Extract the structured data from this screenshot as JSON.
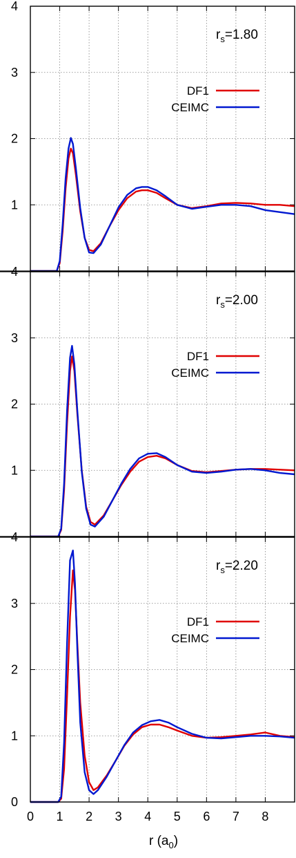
{
  "figure": {
    "xlabel": "r (a",
    "xlabel_sub": "0",
    "xlabel_close": ")"
  },
  "legend": {
    "df1": "DF1",
    "ceimc": "CEIMC"
  },
  "colors": {
    "df1": "#e00000",
    "ceimc": "#0018d0",
    "grid": "#808080",
    "frame": "#000000"
  },
  "x_ticks": [
    "0",
    "1",
    "2",
    "3",
    "4",
    "5",
    "6",
    "7",
    "8"
  ],
  "y_ticks": [
    "0",
    "1",
    "2",
    "3",
    "4"
  ],
  "panels": [
    {
      "label_main": "r",
      "label_sub": "s",
      "label_val": "=1.80"
    },
    {
      "label_main": "r",
      "label_sub": "s",
      "label_val": "=2.00"
    },
    {
      "label_main": "r",
      "label_sub": "s",
      "label_val": "=2.20"
    }
  ],
  "chart_data": [
    {
      "type": "line",
      "title": "",
      "annotation": "rs=1.80",
      "xlabel": "r (a0)",
      "ylabel": "",
      "xlim": [
        0,
        9
      ],
      "ylim": [
        0,
        4
      ],
      "grid": true,
      "legend_placement": "top-right",
      "series": [
        {
          "name": "DF1",
          "x": [
            0,
            0.9,
            1.0,
            1.1,
            1.2,
            1.3,
            1.38,
            1.45,
            1.55,
            1.7,
            1.85,
            2.0,
            2.15,
            2.4,
            2.7,
            3.0,
            3.3,
            3.6,
            3.8,
            4.0,
            4.3,
            4.6,
            5.0,
            5.5,
            6.0,
            6.5,
            7.0,
            7.5,
            8.0,
            8.5,
            9.0
          ],
          "y": [
            0,
            0,
            0.12,
            0.6,
            1.25,
            1.7,
            1.85,
            1.78,
            1.45,
            0.9,
            0.5,
            0.32,
            0.3,
            0.42,
            0.68,
            0.92,
            1.1,
            1.2,
            1.22,
            1.22,
            1.18,
            1.1,
            1.0,
            0.95,
            0.98,
            1.02,
            1.03,
            1.02,
            1.0,
            1.0,
            0.98
          ]
        },
        {
          "name": "CEIMC",
          "x": [
            0,
            0.9,
            1.0,
            1.1,
            1.2,
            1.3,
            1.38,
            1.45,
            1.55,
            1.7,
            1.85,
            2.0,
            2.15,
            2.4,
            2.7,
            3.0,
            3.3,
            3.6,
            3.8,
            4.0,
            4.3,
            4.6,
            5.0,
            5.5,
            6.0,
            6.5,
            7.0,
            7.5,
            8.0,
            8.5,
            9.0
          ],
          "y": [
            0,
            0,
            0.15,
            0.7,
            1.4,
            1.85,
            2.01,
            1.92,
            1.55,
            0.95,
            0.5,
            0.28,
            0.27,
            0.4,
            0.68,
            0.96,
            1.15,
            1.25,
            1.27,
            1.27,
            1.22,
            1.13,
            1.0,
            0.94,
            0.97,
            1.0,
            1.0,
            0.98,
            0.92,
            0.89,
            0.86
          ]
        }
      ]
    },
    {
      "type": "line",
      "title": "",
      "annotation": "rs=2.00",
      "xlabel": "r (a0)",
      "ylabel": "",
      "xlim": [
        0,
        9
      ],
      "ylim": [
        0,
        4
      ],
      "grid": true,
      "legend_placement": "top-right",
      "series": [
        {
          "name": "DF1",
          "x": [
            0,
            0.95,
            1.05,
            1.15,
            1.25,
            1.35,
            1.42,
            1.5,
            1.6,
            1.75,
            1.9,
            2.05,
            2.2,
            2.5,
            2.8,
            3.1,
            3.4,
            3.7,
            4.0,
            4.3,
            4.6,
            5.0,
            5.5,
            6.0,
            6.5,
            7.0,
            7.5,
            8.0,
            8.5,
            9.0
          ],
          "y": [
            0,
            0,
            0.1,
            0.7,
            1.7,
            2.5,
            2.72,
            2.5,
            1.85,
            1.0,
            0.45,
            0.22,
            0.18,
            0.32,
            0.55,
            0.78,
            0.98,
            1.13,
            1.2,
            1.22,
            1.18,
            1.08,
            0.99,
            0.97,
            0.99,
            1.01,
            1.02,
            1.02,
            1.01,
            1.0
          ]
        },
        {
          "name": "CEIMC",
          "x": [
            0,
            0.95,
            1.05,
            1.15,
            1.25,
            1.35,
            1.42,
            1.5,
            1.6,
            1.75,
            1.9,
            2.05,
            2.2,
            2.5,
            2.8,
            3.1,
            3.4,
            3.7,
            4.0,
            4.3,
            4.6,
            5.0,
            5.5,
            6.0,
            6.5,
            7.0,
            7.5,
            8.0,
            8.5,
            9.0
          ],
          "y": [
            0,
            0,
            0.12,
            0.8,
            1.9,
            2.7,
            2.88,
            2.6,
            1.9,
            0.98,
            0.42,
            0.18,
            0.15,
            0.3,
            0.55,
            0.8,
            1.02,
            1.18,
            1.25,
            1.26,
            1.2,
            1.08,
            0.98,
            0.96,
            0.98,
            1.01,
            1.02,
            1.0,
            0.96,
            0.94
          ]
        }
      ]
    },
    {
      "type": "line",
      "title": "",
      "annotation": "rs=2.20",
      "xlabel": "r (a0)",
      "ylabel": "",
      "xlim": [
        0,
        9
      ],
      "ylim": [
        0,
        4
      ],
      "grid": true,
      "legend_placement": "top-right",
      "series": [
        {
          "name": "DF1",
          "x": [
            0,
            0.95,
            1.05,
            1.15,
            1.25,
            1.35,
            1.45,
            1.52,
            1.6,
            1.7,
            1.85,
            2.0,
            2.15,
            2.3,
            2.6,
            2.9,
            3.2,
            3.5,
            3.8,
            4.1,
            4.4,
            4.7,
            5.0,
            5.5,
            6.0,
            6.5,
            7.0,
            7.5,
            8.0,
            8.5,
            9.0
          ],
          "y": [
            0,
            0,
            0.05,
            0.5,
            1.6,
            2.8,
            3.5,
            3.2,
            2.4,
            1.5,
            0.7,
            0.3,
            0.18,
            0.22,
            0.4,
            0.62,
            0.85,
            1.02,
            1.13,
            1.17,
            1.17,
            1.13,
            1.08,
            1.0,
            0.97,
            0.98,
            1.0,
            1.02,
            1.05,
            1.0,
            0.98
          ]
        },
        {
          "name": "CEIMC",
          "x": [
            0,
            0.95,
            1.05,
            1.15,
            1.25,
            1.35,
            1.45,
            1.52,
            1.6,
            1.7,
            1.85,
            2.0,
            2.15,
            2.3,
            2.6,
            2.9,
            3.2,
            3.5,
            3.8,
            4.1,
            4.4,
            4.7,
            5.0,
            5.5,
            6.0,
            6.5,
            7.0,
            7.5,
            8.0,
            8.5,
            9.0
          ],
          "y": [
            0,
            0,
            0.08,
            0.9,
            2.4,
            3.65,
            3.8,
            3.3,
            2.3,
            1.2,
            0.45,
            0.18,
            0.12,
            0.18,
            0.38,
            0.62,
            0.86,
            1.05,
            1.16,
            1.22,
            1.24,
            1.2,
            1.13,
            1.03,
            0.97,
            0.96,
            0.98,
            1.0,
            1.0,
            0.99,
            0.97
          ]
        }
      ]
    }
  ]
}
